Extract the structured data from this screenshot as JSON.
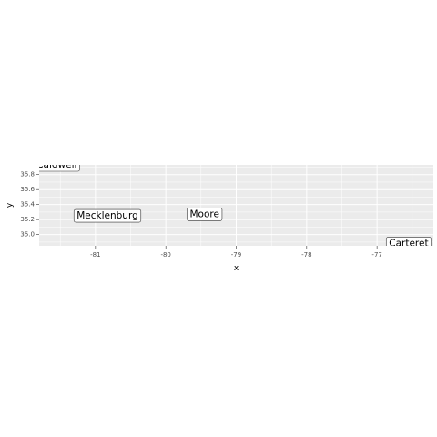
{
  "chart_data": {
    "type": "scatter",
    "xlabel": "x",
    "ylabel": "y",
    "xlim": [
      -81.8,
      -76.2
    ],
    "ylim": [
      34.85,
      35.93
    ],
    "x_ticks": [
      -81,
      -80,
      -79,
      -78,
      -77
    ],
    "x_tick_labels": [
      "-81",
      "-80",
      "-79",
      "-78",
      "-77"
    ],
    "y_ticks": [
      35.0,
      35.2,
      35.4,
      35.6,
      35.8
    ],
    "y_tick_labels": [
      "35.0",
      "35.2",
      "35.4",
      "35.6",
      "35.8"
    ],
    "grid": true,
    "points": [
      {
        "label": "Caldwell",
        "x": -81.55,
        "y": 35.93
      },
      {
        "label": "Mecklenburg",
        "x": -80.83,
        "y": 35.25
      },
      {
        "label": "Moore",
        "x": -79.45,
        "y": 35.27
      },
      {
        "label": "Carteret",
        "x": -76.55,
        "y": 34.88
      }
    ],
    "colors": {
      "panel_background": "#ebebeb",
      "grid": "#ffffff",
      "tick_label": "#4d4d4d",
      "label_border": "#333333",
      "label_fill": "#ffffff"
    }
  }
}
